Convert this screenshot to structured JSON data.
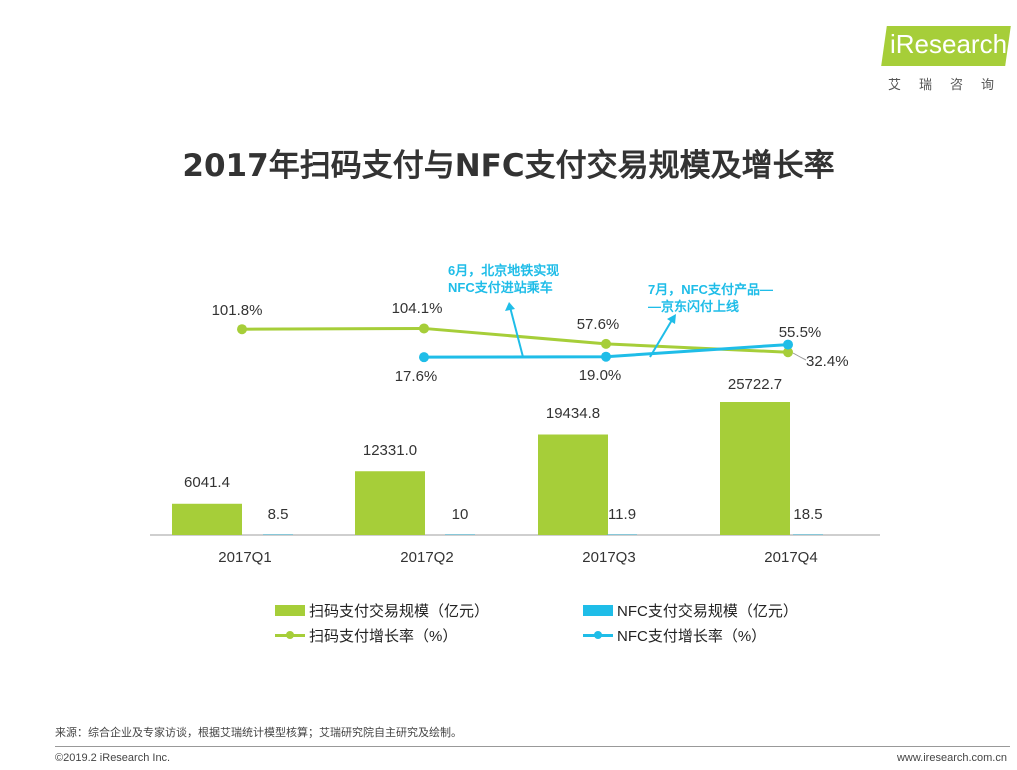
{
  "logo": {
    "text": "iResearch",
    "subtitle": "艾瑞咨询"
  },
  "chart_data": {
    "type": "bar",
    "title": "2017年扫码支付与NFC支付交易规模及增长率",
    "categories": [
      "2017Q1",
      "2017Q2",
      "2017Q3",
      "2017Q4"
    ],
    "series": [
      {
        "name": "扫码支付交易规模（亿元）",
        "kind": "bar",
        "color": "#a6ce39",
        "values": [
          6041.4,
          12331.0,
          19434.8,
          25722.7
        ],
        "labels": [
          "6041.4",
          "12331.0",
          "19434.8",
          "25722.7"
        ]
      },
      {
        "name": "NFC支付交易规模（亿元）",
        "kind": "bar",
        "color": "#1fbde8",
        "values": [
          8.5,
          10,
          11.9,
          18.5
        ],
        "labels": [
          "8.5",
          "10",
          "11.9",
          "18.5"
        ]
      },
      {
        "name": "扫码支付增长率（%）",
        "kind": "line",
        "color": "#a6ce39",
        "values": [
          101.8,
          104.1,
          57.6,
          32.4
        ],
        "labels": [
          "101.8%",
          "104.1%",
          "57.6%",
          "32.4%"
        ]
      },
      {
        "name": "NFC支付增长率（%）",
        "kind": "line",
        "color": "#1fbde8",
        "values": [
          null,
          17.6,
          19.0,
          55.5
        ],
        "labels": [
          "",
          "17.6%",
          "19.0%",
          "55.5%"
        ]
      }
    ],
    "annotations": [
      {
        "lines": [
          "6月，北京地铁实现",
          "NFC支付进站乘车"
        ],
        "color": "#1fbde8"
      },
      {
        "lines": [
          "7月，NFC支付产品—",
          "—京东闪付上线"
        ],
        "color": "#1fbde8"
      }
    ],
    "grid": false,
    "legend_position": "bottom"
  },
  "source": "来源：综合企业及专家访谈，根据艾瑞统计模型核算；艾瑞研究院自主研究及绘制。",
  "footer": {
    "copyright": "©2019.2 iResearch Inc.",
    "website": "www.iresearch.com.cn"
  }
}
